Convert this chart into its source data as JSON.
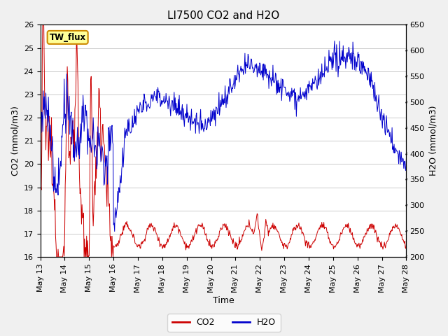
{
  "title": "LI7500 CO2 and H2O",
  "xlabel": "Time",
  "ylabel_left": "CO2 (mmol/m3)",
  "ylabel_right": "H2O (mmol/m3)",
  "co2_ylim": [
    16.0,
    26.0
  ],
  "h2o_ylim": [
    200,
    650
  ],
  "co2_color": "#cc0000",
  "h2o_color": "#0000cc",
  "plot_bg_color": "#ffffff",
  "fig_bg_color": "#f0f0f0",
  "annotation_text": "TW_flux",
  "annotation_bg": "#ffff99",
  "annotation_border": "#cc8800",
  "title_fontsize": 11,
  "axis_fontsize": 9,
  "tick_fontsize": 8
}
